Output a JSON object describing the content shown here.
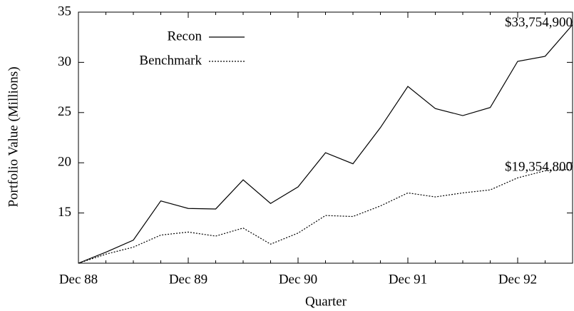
{
  "chart_data": {
    "type": "line",
    "x_label": "Quarter",
    "y_label": "Portfolio Value (Millions)",
    "categories": [
      "Dec 88",
      null,
      null,
      null,
      "Dec 89",
      null,
      null,
      null,
      "Dec 90",
      null,
      null,
      null,
      "Dec 91",
      null,
      null,
      null,
      "Dec 92",
      null,
      null
    ],
    "series": [
      {
        "name": "Recon",
        "color": "#000000",
        "dash": "solid",
        "values": [
          10,
          11.1,
          12.3,
          16.2,
          15.45,
          15.4,
          18.3,
          15.95,
          17.6,
          21.0,
          19.9,
          23.5,
          27.6,
          25.4,
          24.7,
          25.5,
          30.1,
          30.6,
          33.75
        ]
      },
      {
        "name": "Benchmark",
        "color": "#000000",
        "dash": "dotted",
        "values": [
          10,
          10.9,
          11.6,
          12.8,
          13.1,
          12.7,
          13.5,
          11.9,
          13.0,
          14.75,
          14.65,
          15.7,
          17.0,
          16.6,
          17.0,
          17.3,
          18.5,
          19.2,
          19.35
        ]
      }
    ],
    "annotations": [
      "$33,754,900",
      "$19,354,800"
    ],
    "ylim": [
      10,
      35
    ],
    "yticks": [
      15,
      20,
      25,
      30,
      35
    ],
    "legend": "upper left",
    "grid": false
  }
}
